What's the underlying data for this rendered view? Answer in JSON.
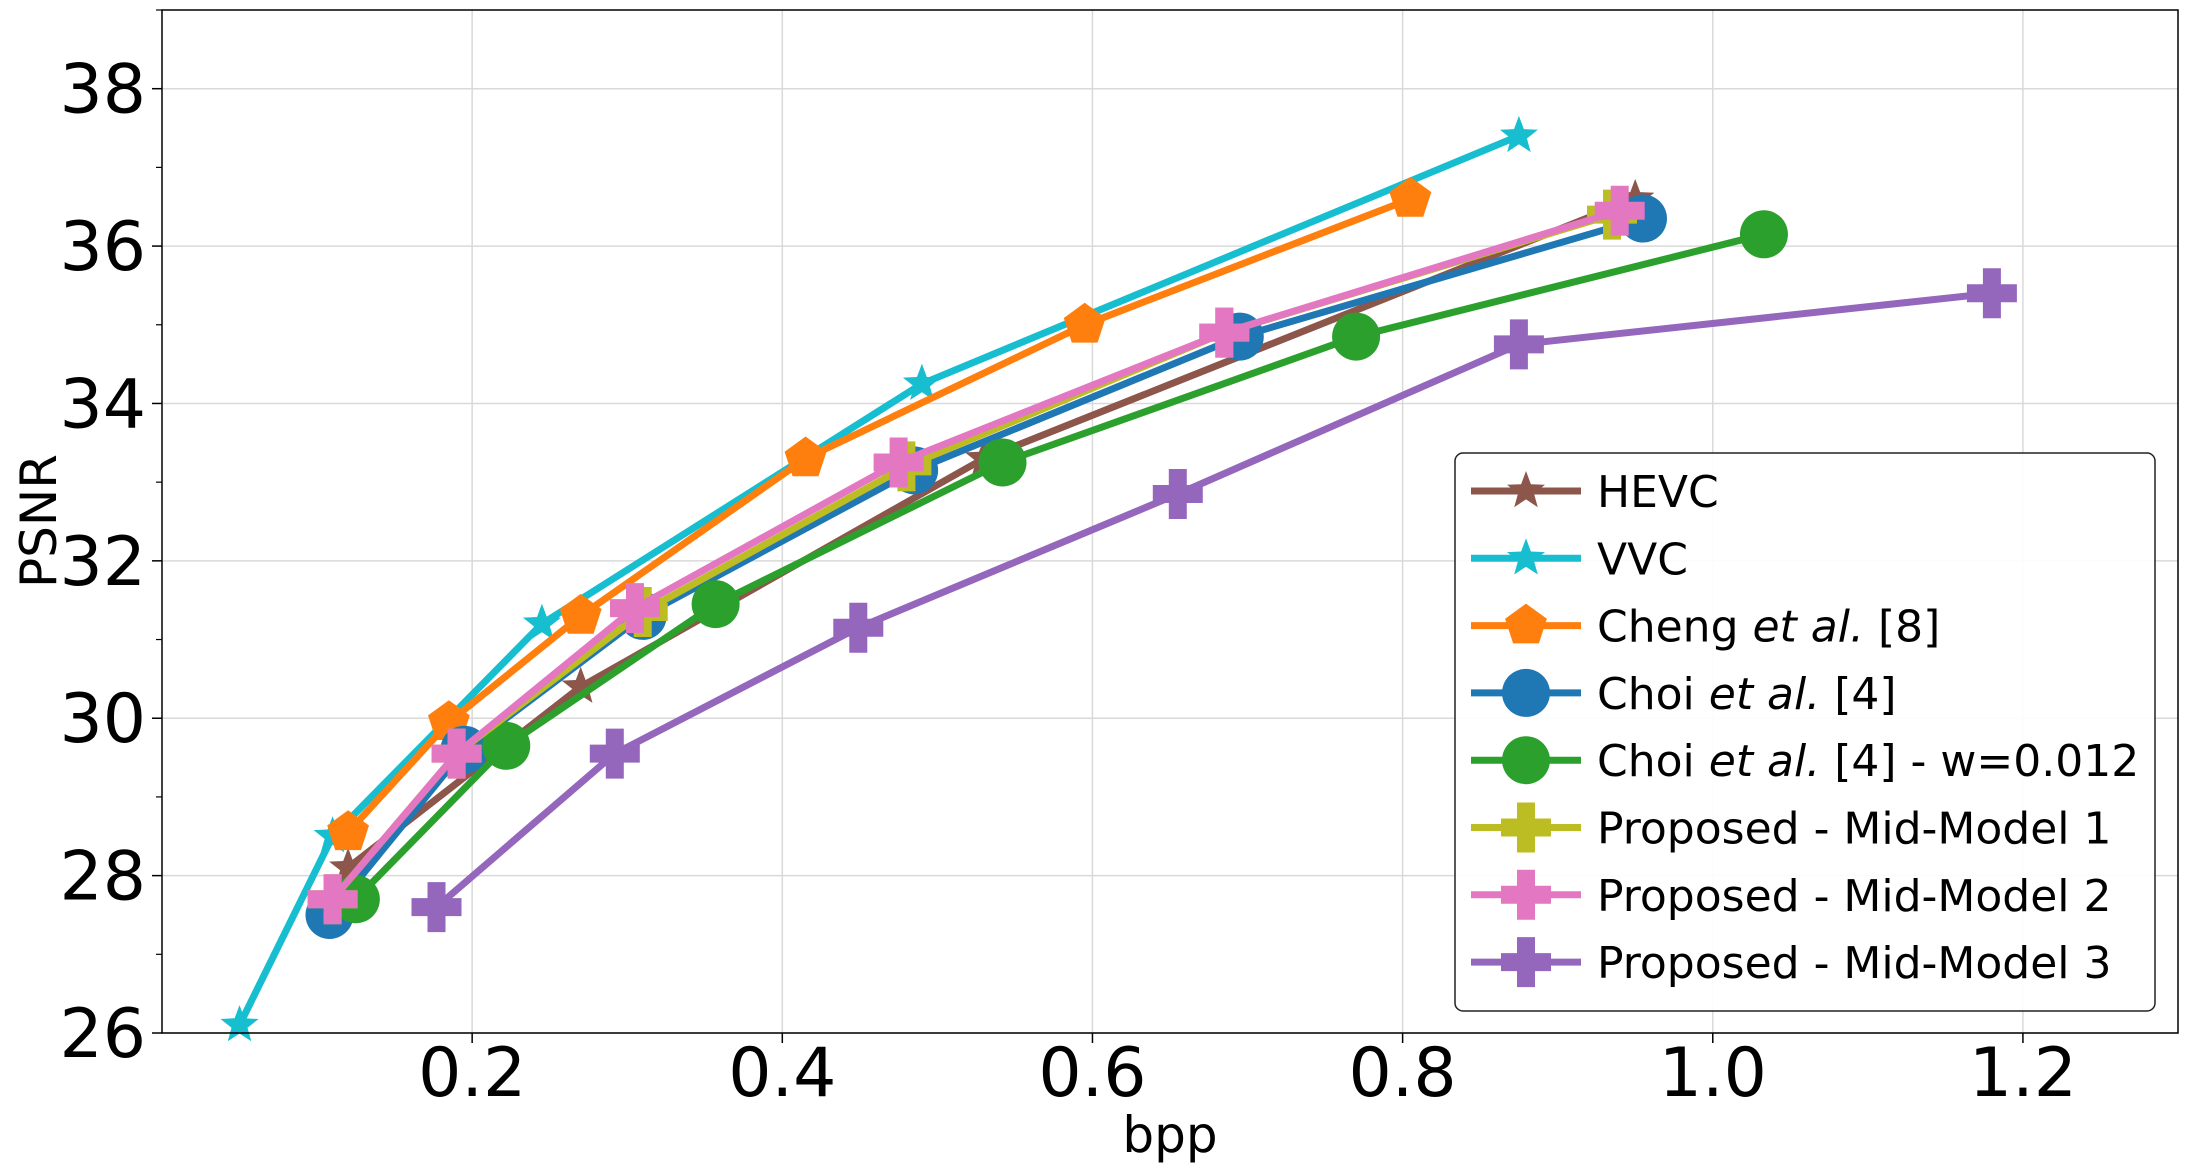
{
  "chart_data": {
    "type": "line",
    "title": "",
    "xlabel": "bpp",
    "ylabel": "PSNR",
    "xlim": [
      0.0,
      1.3
    ],
    "ylim": [
      26,
      39
    ],
    "xticks": [
      0.2,
      0.4,
      0.6,
      0.8,
      1.0,
      1.2
    ],
    "xtick_labels": [
      "0.2",
      "0.4",
      "0.6",
      "0.8",
      "1.0",
      "1.2"
    ],
    "yticks": [
      26,
      28,
      30,
      32,
      34,
      36,
      38
    ],
    "ytick_labels": [
      "26",
      "28",
      "30",
      "32",
      "34",
      "36",
      "38"
    ],
    "grid": true,
    "legend_position": "lower-right",
    "series": [
      {
        "name": "HEVC",
        "label_parts": [
          "HEVC"
        ],
        "color": "#8c564b",
        "marker": "star",
        "x": [
          0.12,
          0.27,
          0.53,
          0.95
        ],
        "y": [
          28.1,
          30.4,
          33.3,
          36.6
        ]
      },
      {
        "name": "VVC",
        "label_parts": [
          "VVC"
        ],
        "color": "#17becf",
        "marker": "star",
        "x": [
          0.05,
          0.11,
          0.245,
          0.49,
          0.875
        ],
        "y": [
          26.1,
          28.5,
          31.2,
          34.25,
          37.4
        ]
      },
      {
        "name": "Cheng et al. [8]",
        "label_parts": [
          "Cheng ",
          "et al.",
          " [8]"
        ],
        "color": "#ff7f0e",
        "marker": "pentagon",
        "x": [
          0.12,
          0.185,
          0.27,
          0.415,
          0.595,
          0.805
        ],
        "y": [
          28.55,
          29.95,
          31.3,
          33.3,
          35.0,
          36.6
        ]
      },
      {
        "name": "Choi et al. [4]",
        "label_parts": [
          "Choi ",
          "et al.",
          " [4]"
        ],
        "color": "#1f77b4",
        "marker": "circle",
        "x": [
          0.108,
          0.195,
          0.31,
          0.485,
          0.695,
          0.955
        ],
        "y": [
          27.5,
          29.6,
          31.3,
          33.15,
          34.85,
          36.35
        ]
      },
      {
        "name": "Choi et al. [4] - w=0.012",
        "label_parts": [
          "Choi ",
          "et al.",
          " [4] - w=0.012"
        ],
        "color": "#2ca02c",
        "marker": "circle",
        "x": [
          0.125,
          0.222,
          0.357,
          0.542,
          0.77,
          1.033
        ],
        "y": [
          27.7,
          29.65,
          31.45,
          33.25,
          34.85,
          36.15
        ]
      },
      {
        "name": "Proposed - Mid-Model 1",
        "label_parts": [
          "Proposed - Mid-Model 1"
        ],
        "color": "#bcbd22",
        "marker": "plus",
        "x": [
          0.11,
          0.19,
          0.31,
          0.48,
          0.685,
          0.935
        ],
        "y": [
          27.7,
          29.55,
          31.35,
          33.2,
          34.9,
          36.4
        ]
      },
      {
        "name": "Proposed - Mid-Model 2",
        "label_parts": [
          "Proposed - Mid-Model 2"
        ],
        "color": "#e377c2",
        "marker": "plus",
        "x": [
          0.11,
          0.19,
          0.305,
          0.475,
          0.685,
          0.94
        ],
        "y": [
          27.7,
          29.55,
          31.4,
          33.25,
          34.9,
          36.45
        ]
      },
      {
        "name": "Proposed - Mid-Model 3",
        "label_parts": [
          "Proposed - Mid-Model 3"
        ],
        "color": "#9467bd",
        "marker": "plus",
        "x": [
          0.177,
          0.292,
          0.449,
          0.655,
          0.875,
          1.18
        ],
        "y": [
          27.6,
          29.55,
          31.15,
          32.85,
          34.75,
          35.4
        ]
      }
    ]
  }
}
